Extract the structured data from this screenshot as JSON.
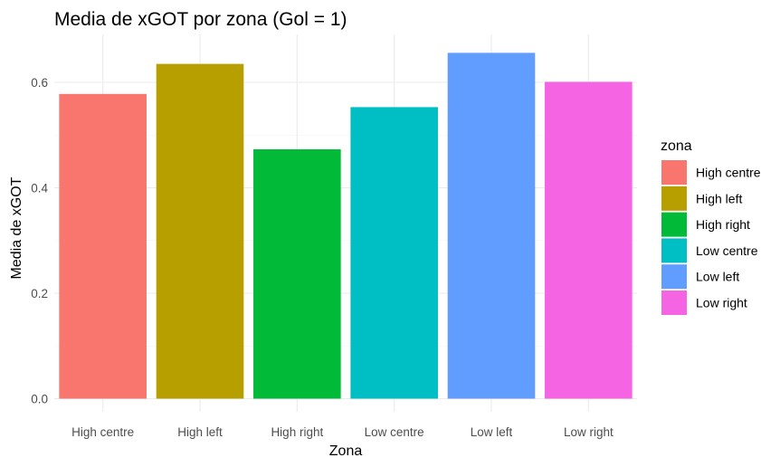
{
  "chart_data": {
    "type": "bar",
    "title": "Media de xGOT por zona (Gol = 1)",
    "xlabel": "Zona",
    "ylabel": "Media de xGOT",
    "categories": [
      "High centre",
      "High left",
      "High right",
      "Low centre",
      "Low left",
      "Low right"
    ],
    "values": [
      0.578,
      0.635,
      0.473,
      0.553,
      0.656,
      0.601
    ],
    "colors": [
      "#F8766D",
      "#B79F00",
      "#00BA38",
      "#00BFC4",
      "#619CFF",
      "#F564E3"
    ],
    "ylim": [
      0,
      0.68
    ],
    "yticks": [
      0.0,
      0.2,
      0.4,
      0.6
    ],
    "ytick_labels": [
      "0.0",
      "0.2",
      "0.4",
      "0.6"
    ],
    "grid": true,
    "legend": {
      "title": "zona",
      "position": "right",
      "entries": [
        "High centre",
        "High left",
        "High right",
        "Low centre",
        "Low left",
        "Low right"
      ]
    }
  }
}
